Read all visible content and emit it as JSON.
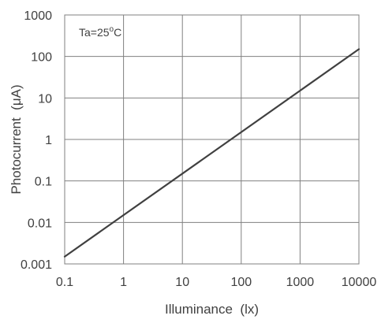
{
  "chart_data": {
    "type": "line",
    "title": "",
    "xlabel": "Illuminance  (lx)",
    "ylabel": "Photocurrent  (μA)",
    "x_scale": "log",
    "y_scale": "log",
    "xlim": [
      0.1,
      10000
    ],
    "ylim": [
      0.001,
      1000
    ],
    "grid": true,
    "legend": "none",
    "x_ticks": [
      0.1,
      1,
      10,
      100,
      1000,
      10000
    ],
    "x_tick_labels": [
      "0.1",
      "1",
      "10",
      "100",
      "1000",
      "10000"
    ],
    "y_ticks": [
      0.001,
      0.01,
      0.1,
      1,
      10,
      100,
      1000
    ],
    "y_tick_labels": [
      "0.001",
      "0.01",
      "0.1",
      "1",
      "10",
      "100",
      "1000"
    ],
    "annotation": {
      "base": "Ta=25",
      "sup": "o",
      "tail": "C"
    },
    "line_color": "#404040",
    "grid_color": "#808080",
    "series": [
      {
        "x": [
          0.1,
          10000
        ],
        "y": [
          0.0015,
          150
        ]
      }
    ]
  }
}
